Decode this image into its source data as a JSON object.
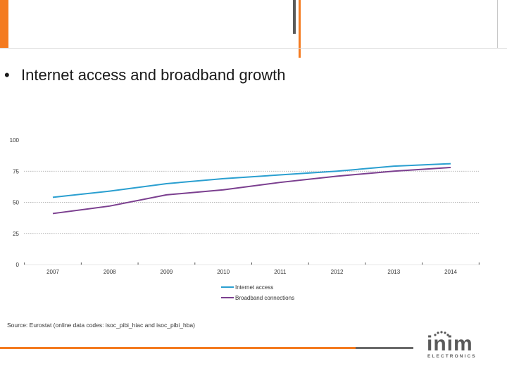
{
  "slide": {
    "bullet": "•",
    "title": "Internet access and broadband growth",
    "source": "Source: Eurostat (online data codes: isoc_pibi_hiac and isoc_pibi_hba)"
  },
  "logo": {
    "word": "inim",
    "sub": "ELECTRONICS"
  },
  "colors": {
    "accent_orange": "#f47b20",
    "internet_access": "#2a9fd0",
    "broadband": "#7b3f8f"
  },
  "chart_data": {
    "type": "line",
    "x": [
      "2007",
      "2008",
      "2009",
      "2010",
      "2011",
      "2012",
      "2013",
      "2014"
    ],
    "ylim": [
      0,
      100
    ],
    "yticks": [
      0,
      25,
      50,
      75,
      100
    ],
    "grid": "horizontal",
    "legend_position": "bottom",
    "series": [
      {
        "name": "Internet access",
        "color": "#2a9fd0",
        "values": [
          54,
          59,
          65,
          69,
          72,
          75,
          79,
          81
        ]
      },
      {
        "name": "Broadband connections",
        "color": "#7b3f8f",
        "values": [
          41,
          47,
          56,
          60,
          66,
          71,
          75,
          78
        ]
      }
    ]
  }
}
